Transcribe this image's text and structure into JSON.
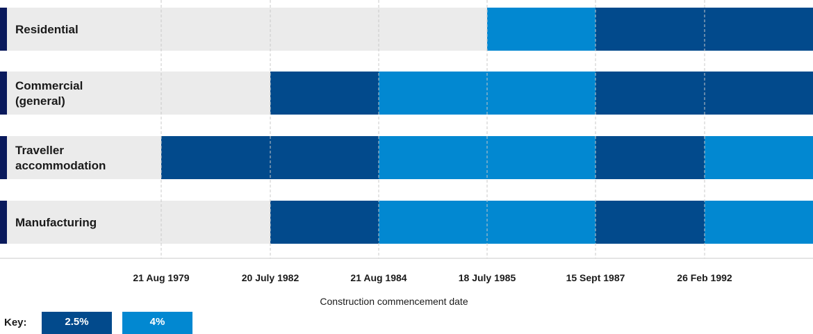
{
  "chart_data": {
    "type": "timeline",
    "xlabel": "Construction commencement date",
    "ticks": [
      "21 Aug 1979",
      "20 July 1982",
      "21 Aug 1984",
      "18 July 1985",
      "15 Sept 1987",
      "26 Feb 1992"
    ],
    "categories": [
      {
        "label": [
          "Residential"
        ],
        "start_tick": 3,
        "segments": [
          {
            "from_tick": 3,
            "to_tick": 4,
            "rate": "4%"
          },
          {
            "from_tick": 4,
            "to_tick": null,
            "rate": "2.5%"
          }
        ]
      },
      {
        "label": [
          "Commercial",
          "(general)"
        ],
        "start_tick": 1,
        "segments": [
          {
            "from_tick": 1,
            "to_tick": 2,
            "rate": "2.5%"
          },
          {
            "from_tick": 2,
            "to_tick": 4,
            "rate": "4%"
          },
          {
            "from_tick": 4,
            "to_tick": null,
            "rate": "2.5%"
          }
        ]
      },
      {
        "label": [
          "Traveller",
          "accommodation"
        ],
        "start_tick": 0,
        "segments": [
          {
            "from_tick": 0,
            "to_tick": 2,
            "rate": "2.5%"
          },
          {
            "from_tick": 2,
            "to_tick": 4,
            "rate": "4%"
          },
          {
            "from_tick": 4,
            "to_tick": 5,
            "rate": "2.5%"
          },
          {
            "from_tick": 5,
            "to_tick": null,
            "rate": "4%"
          }
        ]
      },
      {
        "label": [
          "Manufacturing"
        ],
        "start_tick": 1,
        "segments": [
          {
            "from_tick": 1,
            "to_tick": 2,
            "rate": "2.5%"
          },
          {
            "from_tick": 2,
            "to_tick": 4,
            "rate": "4%"
          },
          {
            "from_tick": 4,
            "to_tick": 5,
            "rate": "2.5%"
          },
          {
            "from_tick": 5,
            "to_tick": null,
            "rate": "4%"
          }
        ]
      }
    ],
    "grid": true
  },
  "key": {
    "label": "Key:",
    "items": [
      {
        "label": "2.5%",
        "color": "#024a8c"
      },
      {
        "label": "4%",
        "color": "#0288d1"
      }
    ]
  },
  "colors": {
    "dark": "#024a8c",
    "light": "#0288d1",
    "empty": "#ebebeb",
    "marker": "#0a1a5c",
    "grid": "#c8c8c8"
  }
}
